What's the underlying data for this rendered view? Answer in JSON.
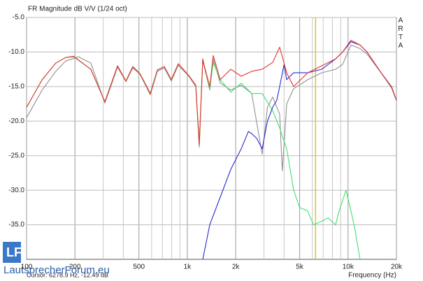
{
  "chart_data": {
    "type": "line",
    "title": "FR Magnitude dB V/V (1/24 oct)",
    "side_label": "ARTA",
    "x_label": "Frequency (Hz)",
    "cursor": {
      "label": "Cursor: 6278.9 Hz, -12.49 dB",
      "x": 6278.9,
      "color": "#e8c020"
    },
    "watermark": "LautsprecherForum.eu",
    "log_x": true,
    "grid": true,
    "xlim": [
      100,
      20000
    ],
    "ylim": [
      -40,
      -5
    ],
    "xticks": [
      100,
      200,
      500,
      {
        "value": 1000,
        "label": "1k"
      },
      {
        "value": 2000,
        "label": "2k"
      },
      {
        "value": 5000,
        "label": "5k"
      },
      {
        "value": 10000,
        "label": "10k"
      },
      {
        "value": 20000,
        "label": "20k"
      }
    ],
    "x_minor_grid": [
      300,
      400,
      600,
      700,
      800,
      900,
      3000,
      4000,
      6000,
      7000,
      8000,
      9000
    ],
    "yticks": [
      {
        "value": -5,
        "label": "-5.0"
      },
      {
        "value": -10,
        "label": "-10.0"
      },
      {
        "value": -15,
        "label": "-15.0"
      },
      {
        "value": -20,
        "label": "-20.0"
      },
      {
        "value": -25,
        "label": "-25.0"
      },
      {
        "value": -30,
        "label": "-30.0"
      },
      {
        "value": -35,
        "label": "-35.0"
      }
    ],
    "series": [
      {
        "color": "#909090",
        "x": [
          100,
          125,
          152,
          175,
          210,
          251,
          307,
          368,
          415,
          458,
          507,
          589,
          651,
          719,
          795,
          879,
          1021,
          1129,
          1187,
          1248,
          1286,
          1379,
          1450,
          1603,
          1863,
          2165,
          2515,
          2924,
          3150,
          3397,
          3755,
          3900,
          4151,
          4588,
          5606,
          6850,
          8369,
          9250,
          10430,
          11880,
          13130,
          16040,
          18650,
          20000
        ],
        "values": [
          -19.5,
          -15.5,
          -12.8,
          -11.3,
          -10.7,
          -11.6,
          -17.4,
          -12.2,
          -14.3,
          -12.3,
          -13.2,
          -16.2,
          -12.8,
          -12.3,
          -14.2,
          -11.9,
          -13.5,
          -15,
          -23,
          -11.2,
          -12.5,
          -15.5,
          -11,
          -14.5,
          -15.5,
          -14.8,
          -16,
          -24.8,
          -18,
          -16.5,
          -19,
          -27.2,
          -17.5,
          -15.3,
          -14,
          -13,
          -12.5,
          -11.8,
          -9,
          -9.5,
          -10.3,
          -13,
          -15.2,
          -17
        ]
      },
      {
        "color": "#40e070",
        "x": [
          100,
          125,
          152,
          175,
          196,
          251,
          307,
          368,
          415,
          458,
          507,
          589,
          651,
          719,
          795,
          879,
          1021,
          1129,
          1187,
          1248,
          1286,
          1379,
          1450,
          1603,
          1863,
          2165,
          2515,
          2924,
          3397,
          3755,
          4151,
          4588,
          5000,
          5606,
          6100,
          6850,
          7500,
          8369,
          8800,
          9250,
          9700,
          10430,
          11000,
          11880
        ],
        "values": [
          -18,
          -14,
          -11.6,
          -10.8,
          -10.7,
          -12.5,
          -17.2,
          -12,
          -14.2,
          -12.1,
          -13.1,
          -16,
          -12.6,
          -12.1,
          -14,
          -11.7,
          -13.4,
          -14.8,
          -23.8,
          -11,
          -12.3,
          -15.3,
          -11.5,
          -14,
          -15.8,
          -14.5,
          -16,
          -16,
          -18.5,
          -21,
          -24,
          -30,
          -32.5,
          -33,
          -35,
          -34.5,
          -34,
          -35,
          -33,
          -31.5,
          -30,
          -33,
          -35.5,
          -40
        ]
      },
      {
        "color": "#2a2ad0",
        "x": [
          1248,
          1379,
          1603,
          1863,
          2165,
          2400,
          2515,
          2700,
          2924,
          3150,
          3397,
          3600,
          3755,
          4000,
          4151,
          4588,
          5606,
          6850,
          8369,
          9250,
          10430,
          11880,
          13130,
          16040,
          18650,
          20000
        ],
        "values": [
          -40,
          -35,
          -31,
          -27,
          -24,
          -21.5,
          -21.8,
          -22.5,
          -24,
          -20,
          -18,
          -17,
          -15,
          -11.8,
          -14,
          -13,
          -13,
          -12.5,
          -11,
          -10,
          -8.5,
          -9,
          -10,
          -13,
          -15,
          -17
        ]
      },
      {
        "color": "#e8322f",
        "x": [
          100,
          125,
          152,
          175,
          196,
          251,
          307,
          368,
          415,
          458,
          507,
          589,
          651,
          719,
          795,
          879,
          1021,
          1129,
          1187,
          1248,
          1286,
          1379,
          1450,
          1603,
          1863,
          2165,
          2515,
          2924,
          3397,
          3755,
          4151,
          4588,
          5606,
          6850,
          8369,
          9250,
          10430,
          11880,
          13130,
          16040,
          18650,
          20000
        ],
        "values": [
          -18,
          -14,
          -11.6,
          -10.8,
          -10.6,
          -12.5,
          -17.2,
          -12,
          -14.2,
          -12.1,
          -13.1,
          -16,
          -12.6,
          -12.1,
          -14,
          -11.7,
          -13.4,
          -14.8,
          -23.5,
          -11,
          -12.3,
          -15,
          -10.5,
          -14,
          -12.5,
          -13.5,
          -12.8,
          -12.5,
          -11.5,
          -9.3,
          -13,
          -15,
          -13,
          -12,
          -11,
          -10,
          -8.3,
          -9,
          -10,
          -13,
          -15,
          -17
        ]
      }
    ]
  }
}
